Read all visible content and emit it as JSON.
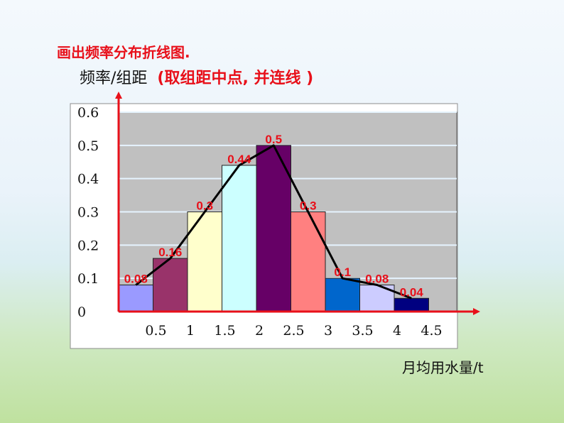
{
  "title": "画出频率分布折线图.",
  "ylabel": "频率/组距",
  "ylabel_note": "(取组距中点, 并连线 )",
  "xlabel": "月均用水量/t",
  "chart_data": {
    "type": "bar",
    "bins": [
      [
        0,
        0.5
      ],
      [
        0.5,
        1
      ],
      [
        1,
        1.5
      ],
      [
        1.5,
        2
      ],
      [
        2,
        2.5
      ],
      [
        2.5,
        3
      ],
      [
        3,
        3.5
      ],
      [
        3.5,
        4
      ],
      [
        4,
        4.5
      ]
    ],
    "values": [
      0.08,
      0.16,
      0.3,
      0.44,
      0.5,
      0.3,
      0.1,
      0.08,
      0.04
    ],
    "value_labels": [
      "0.08",
      "0.16",
      "0.3",
      "0.44",
      "0.5",
      "0.3",
      "0.1",
      "0.08",
      "0.04"
    ],
    "bar_colors": [
      "#9a9aff",
      "#99336a",
      "#ffffcc",
      "#ccffff",
      "#660066",
      "#ff8080",
      "#0066cc",
      "#ccccff",
      "#000080"
    ],
    "polyline": {
      "x": [
        0.25,
        0.75,
        1.25,
        1.75,
        2.25,
        2.75,
        3.25,
        3.75,
        4.25
      ],
      "y": [
        0.08,
        0.16,
        0.3,
        0.44,
        0.5,
        0.3,
        0.1,
        0.08,
        0.04
      ]
    },
    "yticks": [
      {
        "value": 0,
        "label": "0"
      },
      {
        "value": 0.1,
        "label": "0.1"
      },
      {
        "value": 0.2,
        "label": "0.2"
      },
      {
        "value": 0.3,
        "label": "0.3"
      },
      {
        "value": 0.4,
        "label": "0.4"
      },
      {
        "value": 0.5,
        "label": "0.5"
      },
      {
        "value": 0.6,
        "label": "0.6"
      }
    ],
    "xticks": [
      {
        "value": 0.5,
        "label": "0.5"
      },
      {
        "value": 1,
        "label": "1"
      },
      {
        "value": 1.5,
        "label": "1.5"
      },
      {
        "value": 2,
        "label": "2"
      },
      {
        "value": 2.5,
        "label": "2.5"
      },
      {
        "value": 3,
        "label": "3"
      },
      {
        "value": 3.5,
        "label": "3.5"
      },
      {
        "value": 4,
        "label": "4"
      },
      {
        "value": 4.5,
        "label": "4.5"
      }
    ],
    "xlim": [
      0,
      4.9
    ],
    "ylim": [
      0,
      0.6
    ],
    "grid": true
  }
}
